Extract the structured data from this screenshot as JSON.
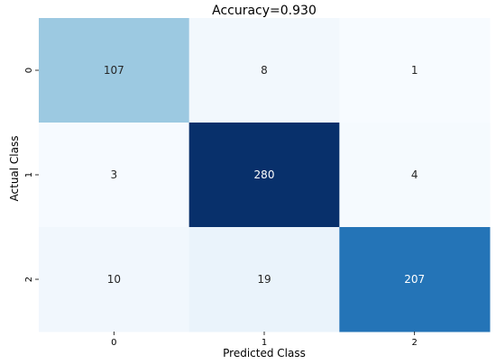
{
  "chart_data": {
    "type": "heatmap",
    "title": "Accuracy=0.930",
    "xlabel": "Predicted Class",
    "ylabel": "Actual Class",
    "x_categories": [
      "0",
      "1",
      "2"
    ],
    "y_categories": [
      "0",
      "1",
      "2"
    ],
    "values": [
      [
        107,
        8,
        1
      ],
      [
        3,
        280,
        4
      ],
      [
        10,
        19,
        207
      ]
    ],
    "colormap": "Blues",
    "colorbar": false,
    "grid": false,
    "value_range": [
      1,
      280
    ],
    "colors": {
      "low": "#f7fbff",
      "high": "#08306b"
    }
  }
}
